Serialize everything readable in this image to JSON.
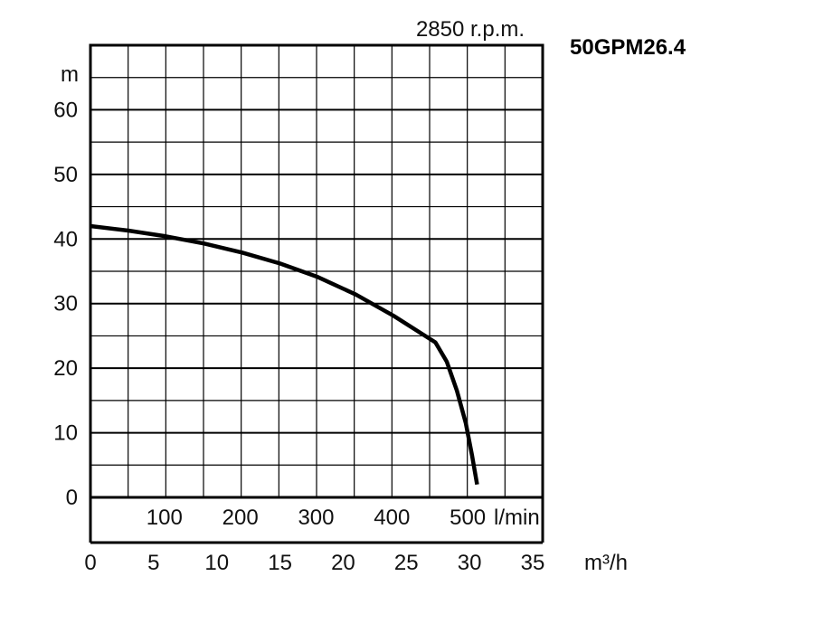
{
  "chart_data": {
    "type": "line",
    "title": "50GPM26.4",
    "speed_label": "2850 r.p.m.",
    "y_unit": "m",
    "x_unit_flow_lmin": "l/min",
    "x_unit_flow_m3h": "m³/h",
    "ylim": [
      0,
      70
    ],
    "xlim_m3h": [
      0,
      36
    ],
    "grid": true,
    "y_ticks": [
      "0",
      "10",
      "20",
      "30",
      "40",
      "50",
      "60"
    ],
    "y_tick_values": [
      0,
      10,
      20,
      30,
      40,
      50,
      60
    ],
    "x_ticks_lmin": [
      "100",
      "200",
      "300",
      "400",
      "500"
    ],
    "x_tick_values_lmin": [
      100,
      200,
      300,
      400,
      500
    ],
    "x_ticks_m3h": [
      "0",
      "5",
      "10",
      "15",
      "20",
      "25",
      "30",
      "35"
    ],
    "x_tick_values_m3h": [
      0,
      5,
      10,
      15,
      20,
      25,
      30,
      35
    ],
    "series": [
      {
        "x_m3h": [
          0,
          3,
          6,
          9,
          12,
          15,
          18,
          21,
          24,
          26,
          27.3,
          28.2,
          29.0,
          29.7,
          30.2,
          30.6
        ],
        "y": [
          42,
          41.3,
          40.4,
          39.3,
          37.9,
          36.2,
          34.1,
          31.4,
          28.1,
          25.6,
          24.0,
          21.0,
          16.5,
          11.5,
          6.5,
          2.0
        ]
      }
    ]
  }
}
